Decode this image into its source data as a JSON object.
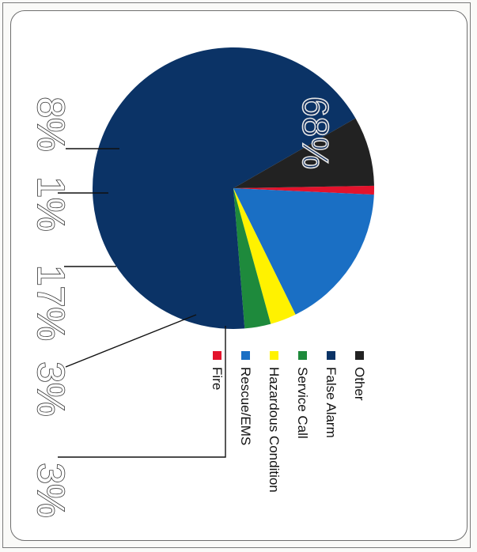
{
  "chart_data": {
    "type": "pie",
    "categories": [
      "Fire",
      "Rescue/EMS",
      "Hazardous Condition",
      "Service Call",
      "False Alarm",
      "Other"
    ],
    "values": [
      1,
      17,
      3,
      3,
      68,
      8
    ],
    "labels": [
      "1%",
      "17%",
      "3%",
      "3%",
      "68%",
      "8%"
    ],
    "colors": [
      "#e3132c",
      "#1a6fc4",
      "#fff200",
      "#1e8a3c",
      "#0b3366",
      "#222222"
    ],
    "legend": "bottom",
    "orientation": "rotated-90-clockwise"
  }
}
